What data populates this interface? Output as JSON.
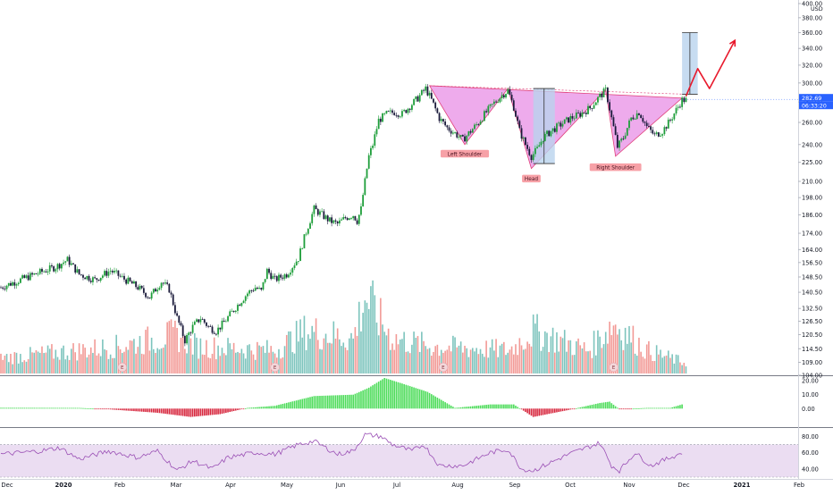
{
  "colors": {
    "up": "#26a69a",
    "up_body": "#1e9e3a",
    "down": "#ef5350",
    "down_body": "#1a1a3a",
    "vol_up": "#7dc4bd",
    "vol_down": "#f29a96",
    "pattern_fill": "#e88fe6",
    "pattern_line": "#e0407a",
    "arrow": "#e8192c",
    "measure_fill": "#b9d3ee",
    "macd_up": "#4ddc5a",
    "macd_down": "#d7263d",
    "rsi_line": "#9a4fb5",
    "rsi_band": "#e6d4ef",
    "price_label_bg": "#2962ff"
  },
  "chart_data": [
    {
      "type": "candlestick",
      "name": "price",
      "y_scale": "log",
      "ylim": [
        104,
        400
      ],
      "currency_label": "USD",
      "y_ticks": [
        "400.00",
        "380.00",
        "360.00",
        "340.00",
        "320.00",
        "300.00",
        "280.00",
        "260.00",
        "240.00",
        "225.00",
        "210.00",
        "198.00",
        "186.00",
        "174.00",
        "164.00",
        "156.50",
        "148.50",
        "140.50",
        "132.50",
        "126.50",
        "120.50",
        "114.50",
        "109.00",
        "104.00"
      ],
      "last_price": "282.69",
      "countdown": "06:33:20",
      "x_labels": [
        "Dec",
        "2020",
        "Feb",
        "Mar",
        "Apr",
        "May",
        "Jun",
        "Jul",
        "Aug",
        "Sep",
        "Oct",
        "Nov",
        "Dec",
        "2021",
        "Feb"
      ],
      "anchors": [
        {
          "d": 0,
          "p": 143
        },
        {
          "d": 10,
          "p": 147
        },
        {
          "d": 20,
          "p": 151
        },
        {
          "d": 28,
          "p": 154
        },
        {
          "d": 34,
          "p": 158
        },
        {
          "d": 40,
          "p": 150
        },
        {
          "d": 48,
          "p": 147
        },
        {
          "d": 56,
          "p": 152
        },
        {
          "d": 62,
          "p": 148
        },
        {
          "d": 70,
          "p": 143
        },
        {
          "d": 76,
          "p": 138
        },
        {
          "d": 82,
          "p": 146
        },
        {
          "d": 86,
          "p": 142
        },
        {
          "d": 90,
          "p": 128
        },
        {
          "d": 94,
          "p": 118
        },
        {
          "d": 98,
          "p": 124
        },
        {
          "d": 102,
          "p": 128
        },
        {
          "d": 106,
          "p": 124
        },
        {
          "d": 110,
          "p": 122
        },
        {
          "d": 114,
          "p": 126
        },
        {
          "d": 120,
          "p": 133
        },
        {
          "d": 126,
          "p": 140
        },
        {
          "d": 130,
          "p": 143
        },
        {
          "d": 133,
          "p": 141
        },
        {
          "d": 136,
          "p": 152
        },
        {
          "d": 140,
          "p": 147
        },
        {
          "d": 146,
          "p": 150
        },
        {
          "d": 152,
          "p": 159
        },
        {
          "d": 156,
          "p": 175
        },
        {
          "d": 160,
          "p": 190
        },
        {
          "d": 164,
          "p": 186
        },
        {
          "d": 168,
          "p": 182
        },
        {
          "d": 172,
          "p": 180
        },
        {
          "d": 176,
          "p": 184
        },
        {
          "d": 180,
          "p": 186
        },
        {
          "d": 182,
          "p": 182
        },
        {
          "d": 184,
          "p": 190
        },
        {
          "d": 186,
          "p": 210
        },
        {
          "d": 188,
          "p": 230
        },
        {
          "d": 190,
          "p": 240
        },
        {
          "d": 193,
          "p": 262
        },
        {
          "d": 197,
          "p": 268
        },
        {
          "d": 201,
          "p": 270
        },
        {
          "d": 205,
          "p": 268
        },
        {
          "d": 209,
          "p": 276
        },
        {
          "d": 213,
          "p": 284
        },
        {
          "d": 217,
          "p": 294
        },
        {
          "d": 220,
          "p": 282
        },
        {
          "d": 224,
          "p": 264
        },
        {
          "d": 228,
          "p": 255
        },
        {
          "d": 232,
          "p": 250
        },
        {
          "d": 236,
          "p": 244
        },
        {
          "d": 240,
          "p": 252
        },
        {
          "d": 244,
          "p": 260
        },
        {
          "d": 248,
          "p": 270
        },
        {
          "d": 252,
          "p": 279
        },
        {
          "d": 256,
          "p": 287
        },
        {
          "d": 259,
          "p": 292
        },
        {
          "d": 262,
          "p": 275
        },
        {
          "d": 265,
          "p": 252
        },
        {
          "d": 268,
          "p": 240
        },
        {
          "d": 271,
          "p": 230
        },
        {
          "d": 274,
          "p": 236
        },
        {
          "d": 277,
          "p": 246
        },
        {
          "d": 281,
          "p": 252
        },
        {
          "d": 286,
          "p": 258
        },
        {
          "d": 291,
          "p": 264
        },
        {
          "d": 296,
          "p": 268
        },
        {
          "d": 301,
          "p": 274
        },
        {
          "d": 306,
          "p": 286
        },
        {
          "d": 309,
          "p": 292
        },
        {
          "d": 312,
          "p": 264
        },
        {
          "d": 315,
          "p": 238
        },
        {
          "d": 318,
          "p": 246
        },
        {
          "d": 322,
          "p": 264
        },
        {
          "d": 326,
          "p": 270
        },
        {
          "d": 330,
          "p": 256
        },
        {
          "d": 334,
          "p": 248
        },
        {
          "d": 338,
          "p": 252
        },
        {
          "d": 342,
          "p": 262
        },
        {
          "d": 345,
          "p": 272
        },
        {
          "d": 348,
          "p": 282
        }
      ],
      "pattern_points": [
        {
          "d": 219,
          "p": 297
        },
        {
          "d": 237,
          "p": 240
        },
        {
          "d": 259,
          "p": 294
        },
        {
          "d": 271,
          "p": 220
        },
        {
          "d": 309,
          "p": 293
        },
        {
          "d": 314,
          "p": 230
        },
        {
          "d": 348,
          "p": 284
        }
      ],
      "neckline": [
        {
          "d": 219,
          "p": 297
        },
        {
          "d": 350,
          "p": 288
        }
      ],
      "annotations": [
        "Left Shoulder",
        "Head",
        "Right Shoulder"
      ],
      "earnings_markers": [
        {
          "d": 62,
          "label": "E"
        },
        {
          "d": 140,
          "label": "E"
        },
        {
          "d": 226,
          "label": "E"
        },
        {
          "d": 313,
          "label": "E"
        }
      ],
      "measure_boxes": [
        {
          "d_from": 272,
          "d_to": 283,
          "p_top": 294,
          "p_bottom": 224
        },
        {
          "d_from": 348,
          "d_to": 356,
          "p_top": 360,
          "p_bottom": 288
        }
      ],
      "forecast_arrow": [
        {
          "d": 350,
          "p": 286
        },
        {
          "d": 356,
          "p": 316
        },
        {
          "d": 362,
          "p": 294
        },
        {
          "d": 375,
          "p": 350
        }
      ]
    },
    {
      "type": "bar",
      "name": "volume",
      "anchors": [
        {
          "d": 0,
          "v": 0.2
        },
        {
          "d": 40,
          "v": 0.3
        },
        {
          "d": 60,
          "v": 0.35
        },
        {
          "d": 90,
          "v": 0.5
        },
        {
          "d": 100,
          "v": 0.35
        },
        {
          "d": 140,
          "v": 0.3
        },
        {
          "d": 156,
          "v": 0.55
        },
        {
          "d": 180,
          "v": 0.45
        },
        {
          "d": 186,
          "v": 1.0
        },
        {
          "d": 192,
          "v": 0.75
        },
        {
          "d": 200,
          "v": 0.45
        },
        {
          "d": 220,
          "v": 0.35
        },
        {
          "d": 260,
          "v": 0.3
        },
        {
          "d": 272,
          "v": 0.55
        },
        {
          "d": 300,
          "v": 0.3
        },
        {
          "d": 313,
          "v": 0.65
        },
        {
          "d": 330,
          "v": 0.3
        },
        {
          "d": 348,
          "v": 0.15
        }
      ]
    },
    {
      "type": "bar",
      "name": "macd_histogram",
      "ylim": [
        -12,
        22
      ],
      "y_ticks": [
        "20.00",
        "10.00",
        "0.00"
      ],
      "anchors": [
        {
          "d": 0,
          "v": 0.6
        },
        {
          "d": 40,
          "v": 0.5
        },
        {
          "d": 55,
          "v": -0.5
        },
        {
          "d": 80,
          "v": -3
        },
        {
          "d": 97,
          "v": -6
        },
        {
          "d": 112,
          "v": -4
        },
        {
          "d": 126,
          "v": 0.5
        },
        {
          "d": 140,
          "v": 2
        },
        {
          "d": 160,
          "v": 9
        },
        {
          "d": 180,
          "v": 10
        },
        {
          "d": 188,
          "v": 15
        },
        {
          "d": 196,
          "v": 22
        },
        {
          "d": 205,
          "v": 18
        },
        {
          "d": 218,
          "v": 12
        },
        {
          "d": 232,
          "v": 0.5
        },
        {
          "d": 250,
          "v": 3
        },
        {
          "d": 262,
          "v": 3
        },
        {
          "d": 272,
          "v": -6
        },
        {
          "d": 290,
          "v": -1
        },
        {
          "d": 306,
          "v": 4
        },
        {
          "d": 311,
          "v": 5
        },
        {
          "d": 316,
          "v": -0.5
        },
        {
          "d": 330,
          "v": 0.5
        },
        {
          "d": 342,
          "v": 0.5
        },
        {
          "d": 348,
          "v": 3
        }
      ]
    },
    {
      "type": "line",
      "name": "rsi",
      "ylim": [
        30,
        88
      ],
      "y_ticks": [
        "80.00",
        "60.00",
        "40.00"
      ],
      "bands": [
        70,
        30
      ],
      "anchors": [
        {
          "d": 0,
          "v": 58
        },
        {
          "d": 20,
          "v": 62
        },
        {
          "d": 30,
          "v": 66
        },
        {
          "d": 40,
          "v": 52
        },
        {
          "d": 55,
          "v": 62
        },
        {
          "d": 70,
          "v": 54
        },
        {
          "d": 80,
          "v": 62
        },
        {
          "d": 90,
          "v": 38
        },
        {
          "d": 98,
          "v": 50
        },
        {
          "d": 108,
          "v": 40
        },
        {
          "d": 116,
          "v": 54
        },
        {
          "d": 130,
          "v": 60
        },
        {
          "d": 140,
          "v": 58
        },
        {
          "d": 152,
          "v": 70
        },
        {
          "d": 160,
          "v": 74
        },
        {
          "d": 172,
          "v": 58
        },
        {
          "d": 180,
          "v": 62
        },
        {
          "d": 186,
          "v": 82
        },
        {
          "d": 194,
          "v": 80
        },
        {
          "d": 200,
          "v": 70
        },
        {
          "d": 210,
          "v": 62
        },
        {
          "d": 216,
          "v": 70
        },
        {
          "d": 224,
          "v": 44
        },
        {
          "d": 236,
          "v": 44
        },
        {
          "d": 250,
          "v": 60
        },
        {
          "d": 259,
          "v": 64
        },
        {
          "d": 266,
          "v": 40
        },
        {
          "d": 272,
          "v": 38
        },
        {
          "d": 290,
          "v": 58
        },
        {
          "d": 306,
          "v": 72
        },
        {
          "d": 312,
          "v": 44
        },
        {
          "d": 316,
          "v": 38
        },
        {
          "d": 324,
          "v": 60
        },
        {
          "d": 332,
          "v": 44
        },
        {
          "d": 342,
          "v": 54
        },
        {
          "d": 348,
          "v": 60
        }
      ]
    }
  ]
}
